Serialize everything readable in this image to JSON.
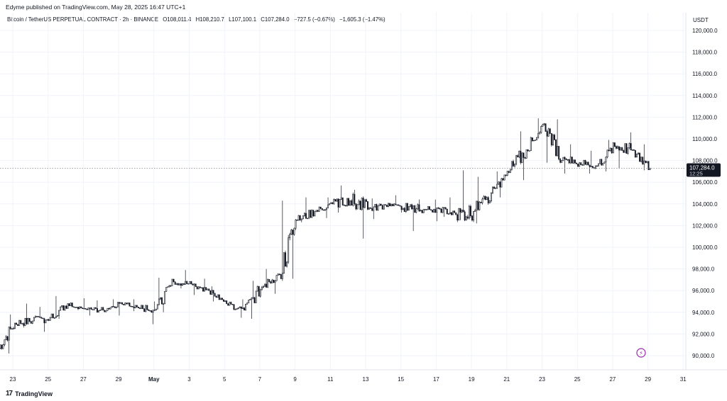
{
  "publisher_line": "Edyme published on TradingView.com, May 28, 2025 16:47 UTC+1",
  "brand": {
    "logo_text": "17",
    "name": "TradingView"
  },
  "legend": {
    "symbol": "Bitcoin / TetherUS PERPETUAL CONTRACT · 2h · BINANCE",
    "open": "O108,011.4",
    "high": "H108,210.7",
    "low": "L107,100.1",
    "close": "C107,284.0",
    "change": "−727.5 (−0.67%)",
    "change2": "−1,605.3 (−1.47%)"
  },
  "price_tag": {
    "price": "107,284.0",
    "countdown": "12:25"
  },
  "colors": {
    "candle": "#131722",
    "grid": "#f0f3fa",
    "last_line": "#9598a1",
    "tag_bg": "#131722",
    "alert": "#9c27b0"
  },
  "icons": {
    "alert": "lightning-icon"
  },
  "chart_data": {
    "type": "candlestick",
    "ylabel": "USDT",
    "ylim": [
      89500,
      121200
    ],
    "y_ticks": [
      90000,
      92000,
      94000,
      96000,
      98000,
      100000,
      102000,
      104000,
      106000,
      108000,
      110000,
      112000,
      114000,
      116000,
      118000,
      120000
    ],
    "y_tick_labels": [
      "90,000.0",
      "92,000.0",
      "94,000.0",
      "96,000.0",
      "98,000.0",
      "100,000.0",
      "102,000.0",
      "104,000.0",
      "106,000.0",
      "108,000.0",
      "110,000.0",
      "112,000.0",
      "114,000.0",
      "116,000.0",
      "118,000.0",
      "120,000.0"
    ],
    "x_ticks": [
      "Apr 23",
      "Apr 25",
      "Apr 27",
      "Apr 29",
      "May 1",
      "May 3",
      "May 5",
      "May 7",
      "May 9",
      "May 11",
      "May 13",
      "May 15",
      "May 17",
      "May 19",
      "May 21",
      "May 23",
      "May 25",
      "May 27",
      "May 29",
      "May 31"
    ],
    "x_tick_labels": [
      "23",
      "25",
      "27",
      "29",
      "May",
      "3",
      "5",
      "7",
      "9",
      "11",
      "13",
      "15",
      "17",
      "19",
      "21",
      "23",
      "25",
      "27",
      "29",
      "31"
    ],
    "last_price": 107284.0,
    "grid": true,
    "series": [
      {
        "interval": "1 day (approximate, summarizing the 2h candles)",
        "dates": [
          "Apr 22",
          "Apr 23",
          "Apr 24",
          "Apr 25",
          "Apr 26",
          "Apr 27",
          "Apr 28",
          "Apr 29",
          "Apr 30",
          "May 1",
          "May 2",
          "May 3",
          "May 4",
          "May 5",
          "May 6",
          "May 7",
          "May 8",
          "May 9",
          "May 10",
          "May 11",
          "May 12",
          "May 13",
          "May 14",
          "May 15",
          "May 16",
          "May 17",
          "May 18",
          "May 19",
          "May 20",
          "May 21",
          "May 22",
          "May 23",
          "May 24",
          "May 25",
          "May 26",
          "May 27",
          "May 28"
        ],
        "open": [
          90500,
          93000,
          93200,
          93500,
          94800,
          94300,
          94200,
          94900,
          94400,
          94300,
          96800,
          96600,
          96000,
          94800,
          94200,
          96300,
          97500,
          102500,
          103300,
          104000,
          104300,
          103500,
          103900,
          103600,
          103400,
          103600,
          103000,
          103300,
          105000,
          106900,
          109000,
          111400,
          108000,
          107800,
          107500,
          109300,
          109000
        ],
        "high": [
          93800,
          94800,
          94500,
          95500,
          95300,
          95100,
          95200,
          95200,
          95000,
          97200,
          97900,
          97100,
          96400,
          95200,
          96900,
          98000,
          104300,
          104600,
          104600,
          105700,
          105300,
          104500,
          104800,
          104400,
          104400,
          104600,
          107100,
          106500,
          107000,
          110700,
          111900,
          111800,
          109500,
          108900,
          109900,
          110600,
          109500
        ],
        "low": [
          90200,
          92600,
          92200,
          93400,
          94200,
          93700,
          93700,
          94100,
          92900,
          94000,
          96200,
          95600,
          95000,
          93500,
          93400,
          95700,
          97100,
          102300,
          102700,
          103200,
          100800,
          102600,
          103200,
          101500,
          102400,
          102800,
          102500,
          102200,
          104600,
          106200,
          108900,
          107800,
          106800,
          106800,
          107000,
          107300,
          107100
        ],
        "close": [
          93000,
          93200,
          93500,
          94800,
          94300,
          94200,
          94900,
          94400,
          94300,
          96800,
          96600,
          96000,
          94800,
          94200,
          96300,
          97500,
          102500,
          103300,
          104000,
          104300,
          103500,
          103900,
          103600,
          103400,
          103600,
          103000,
          103300,
          105000,
          106900,
          109000,
          111400,
          108000,
          107800,
          107500,
          109300,
          109000,
          107284
        ]
      }
    ]
  }
}
